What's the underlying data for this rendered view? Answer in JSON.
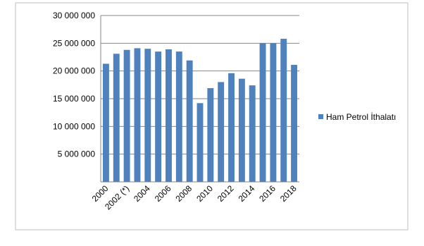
{
  "chart_data": {
    "type": "bar",
    "categories": [
      "2000",
      null,
      "2002 (*)",
      null,
      "2004",
      null,
      "2006",
      null,
      "2008",
      null,
      "2010",
      null,
      "2012",
      null,
      "2014",
      null,
      "2016",
      null,
      "2018"
    ],
    "series": [
      {
        "name": "Ham Petrol İthalatı",
        "color": "#4f81bd",
        "values": [
          21300000,
          23100000,
          23800000,
          24100000,
          24000000,
          23500000,
          23900000,
          23500000,
          21900000,
          14200000,
          16900000,
          18000000,
          19600000,
          18600000,
          17400000,
          25000000,
          25000000,
          25800000,
          21100000
        ]
      }
    ],
    "ylim": [
      0,
      30000000
    ],
    "yticks": [
      {
        "value": 5000000,
        "label": "5 000 000"
      },
      {
        "value": 10000000,
        "label": "10 000 000"
      },
      {
        "value": 15000000,
        "label": "15 000 000"
      },
      {
        "value": 20000000,
        "label": "20 000 000"
      },
      {
        "value": 25000000,
        "label": "25 000 000"
      },
      {
        "value": 30000000,
        "label": "30 000 000"
      }
    ],
    "grid": true,
    "legend": "right"
  }
}
